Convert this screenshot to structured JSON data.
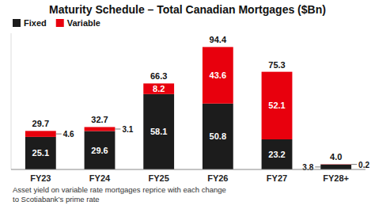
{
  "chart_data": {
    "type": "bar",
    "stacked": true,
    "title": "Maturity Schedule – Total Canadian Mortgages ($Bn)",
    "categories": [
      "FY23",
      "FY24",
      "FY25",
      "FY26",
      "FY27",
      "FY28+"
    ],
    "series": [
      {
        "name": "Fixed",
        "color": "#1c1c1c",
        "values": [
          25.1,
          29.6,
          58.1,
          50.8,
          23.2,
          3.8
        ]
      },
      {
        "name": "Variable",
        "color": "#e8000d",
        "values": [
          4.6,
          3.1,
          8.2,
          43.6,
          52.1,
          0.2
        ]
      }
    ],
    "totals": [
      29.7,
      32.7,
      66.3,
      94.4,
      75.3,
      4.0
    ],
    "total_labels": [
      "29.7",
      "32.7",
      "66.3",
      "94.4",
      "75.3",
      "4.0"
    ],
    "footnote": "Asset yield on variable rate mortgages reprice with each change\nto Scotiabank’s prime rate",
    "ylim": [
      0,
      105
    ],
    "yticks": [],
    "grid": false,
    "legend": "upper left",
    "data_labels": true,
    "tick_labels": "x"
  }
}
